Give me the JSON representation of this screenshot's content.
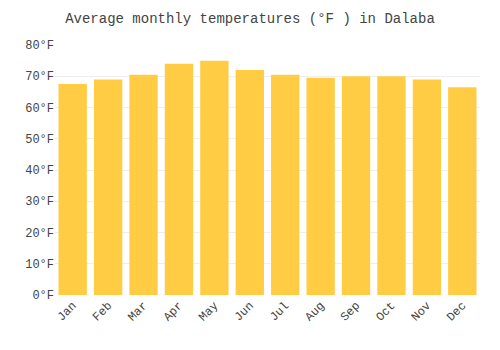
{
  "chart_data": {
    "type": "bar",
    "title": "Average monthly temperatures (°F ) in Dalaba",
    "categories": [
      "Jan",
      "Feb",
      "Mar",
      "Apr",
      "May",
      "Jun",
      "Jul",
      "Aug",
      "Sep",
      "Oct",
      "Nov",
      "Dec"
    ],
    "values": [
      67.5,
      69.0,
      70.5,
      74.0,
      75.0,
      72.0,
      70.5,
      69.5,
      70.0,
      70.0,
      69.0,
      66.5
    ],
    "color": "#FFCC44",
    "ylim": [
      0,
      80
    ],
    "yticks": [
      {
        "value": 0,
        "label": "0°F"
      },
      {
        "value": 10,
        "label": "10°F"
      },
      {
        "value": 20,
        "label": "20°F"
      },
      {
        "value": 30,
        "label": "30°F"
      },
      {
        "value": 40,
        "label": "40°F"
      },
      {
        "value": 50,
        "label": "50°F"
      },
      {
        "value": 60,
        "label": "60°F"
      },
      {
        "value": 70,
        "label": "70°F"
      },
      {
        "value": 80,
        "label": "80°F"
      }
    ],
    "grid": true
  }
}
